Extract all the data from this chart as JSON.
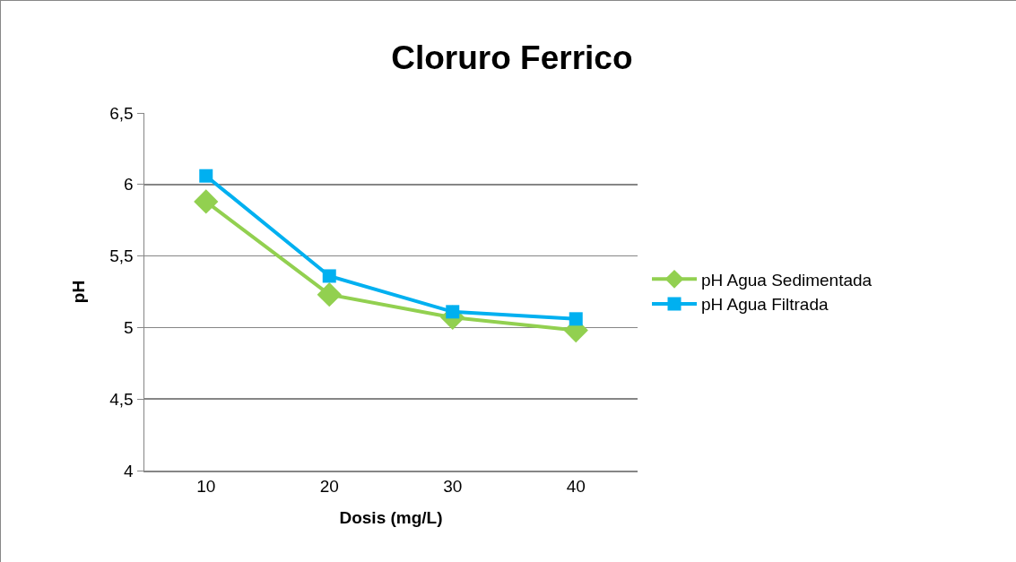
{
  "chart_data": {
    "type": "line",
    "title": "Cloruro Ferrico",
    "xlabel": "Dosis (mg/L)",
    "ylabel": "pH",
    "categories": [
      "10",
      "20",
      "30",
      "40"
    ],
    "series": [
      {
        "name": "pH Agua Sedimentada",
        "color": "#92d050",
        "marker": "diamond",
        "values": [
          5.88,
          5.23,
          5.07,
          4.98
        ]
      },
      {
        "name": "pH Agua Filtrada",
        "color": "#00b0f0",
        "marker": "square",
        "values": [
          6.06,
          5.36,
          5.11,
          5.06
        ]
      }
    ],
    "ylim": [
      4,
      6.5
    ],
    "yticks": [
      {
        "value": 4,
        "label": "4"
      },
      {
        "value": 4.5,
        "label": "4,5"
      },
      {
        "value": 5,
        "label": "5"
      },
      {
        "value": 5.5,
        "label": "5,5"
      },
      {
        "value": 6,
        "label": "6"
      },
      {
        "value": 6.5,
        "label": "6,5"
      }
    ],
    "grid": "y",
    "legend": "right",
    "line_style": "solid"
  }
}
